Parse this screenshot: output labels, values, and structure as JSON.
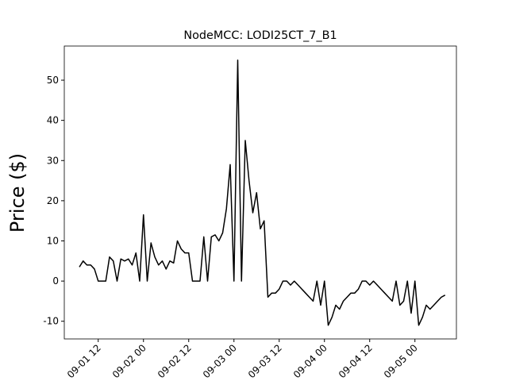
{
  "chart_data": {
    "type": "line",
    "title": "NodeMCC: LODI25CT_7_B1",
    "y_label": "Price ($)",
    "color": "#000000",
    "x": [
      "09-01 07",
      "09-01 08",
      "09-01 09",
      "09-01 10",
      "09-01 11",
      "09-01 12",
      "09-01 13",
      "09-01 14",
      "09-01 15",
      "09-01 16",
      "09-01 17",
      "09-01 18",
      "09-01 19",
      "09-01 20",
      "09-01 21",
      "09-01 22",
      "09-01 23",
      "09-02 00",
      "09-02 01",
      "09-02 02",
      "09-02 03",
      "09-02 04",
      "09-02 05",
      "09-02 06",
      "09-02 07",
      "09-02 08",
      "09-02 09",
      "09-02 10",
      "09-02 11",
      "09-02 12",
      "09-02 13",
      "09-02 14",
      "09-02 15",
      "09-02 16",
      "09-02 17",
      "09-02 18",
      "09-02 19",
      "09-02 20",
      "09-02 21",
      "09-02 22",
      "09-02 23",
      "09-03 00",
      "09-03 01",
      "09-03 02",
      "09-03 03",
      "09-03 04",
      "09-03 05",
      "09-03 06",
      "09-03 07",
      "09-03 08",
      "09-03 09",
      "09-03 10",
      "09-03 11",
      "09-03 12",
      "09-03 13",
      "09-03 14",
      "09-03 15",
      "09-03 16",
      "09-03 17",
      "09-03 18",
      "09-03 19",
      "09-03 20",
      "09-03 21",
      "09-03 22",
      "09-03 23",
      "09-04 00",
      "09-04 01",
      "09-04 02",
      "09-04 03",
      "09-04 04",
      "09-04 05",
      "09-04 06",
      "09-04 07",
      "09-04 08",
      "09-04 09",
      "09-04 10",
      "09-04 11",
      "09-04 12",
      "09-04 13",
      "09-04 14",
      "09-04 15",
      "09-04 16",
      "09-04 17",
      "09-04 18",
      "09-04 19",
      "09-04 20",
      "09-04 21",
      "09-04 22",
      "09-04 23",
      "09-05 00",
      "09-05 01",
      "09-05 02",
      "09-05 03",
      "09-05 04",
      "09-05 05",
      "09-05 06",
      "09-05 07",
      "09-05 08"
    ],
    "values": [
      3.5,
      5,
      4,
      4,
      3,
      0,
      0,
      0,
      6,
      5,
      0,
      5.5,
      5,
      5.5,
      4,
      7,
      0,
      16.5,
      0,
      9.5,
      6,
      4,
      5,
      3,
      5,
      4.5,
      10,
      8,
      7,
      7,
      0,
      0,
      0,
      11,
      0,
      11,
      11.5,
      10,
      12,
      18,
      29,
      0,
      55,
      0,
      35,
      25,
      17,
      22,
      13,
      15,
      -4,
      -3,
      -3,
      -2,
      0,
      0,
      -1,
      0,
      -1,
      -2,
      -3,
      -4,
      -5,
      0,
      -6,
      0,
      -11,
      -9,
      -6,
      -7,
      -5,
      -4,
      -3,
      -3,
      -2,
      0,
      0,
      -1,
      0,
      -1,
      -2,
      -3,
      -4,
      -5,
      0,
      -6,
      -5,
      0,
      -8,
      0,
      -11,
      -9,
      -6,
      -7,
      -6,
      -5,
      -4,
      -3.5
    ],
    "xlim": [
      "09-01 03",
      "09-05 11"
    ],
    "xticks": [
      "09-01 12",
      "09-02 00",
      "09-02 12",
      "09-03 00",
      "09-03 12",
      "09-04 00",
      "09-04 12",
      "09-05 00"
    ],
    "ylim": [
      -14.4,
      58.5
    ],
    "yticks": [
      -10,
      0,
      10,
      20,
      30,
      40,
      50
    ]
  }
}
